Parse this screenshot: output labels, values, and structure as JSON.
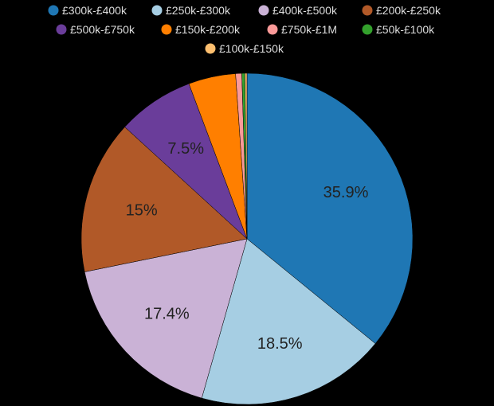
{
  "chart_data": {
    "type": "pie",
    "legend_position": "top",
    "slices": [
      {
        "label": "£300k-£400k",
        "value": 35.9,
        "display": "35.9%",
        "color": "#1f77b4"
      },
      {
        "label": "£250k-£300k",
        "value": 18.5,
        "display": "18.5%",
        "color": "#a6cee3"
      },
      {
        "label": "£400k-£500k",
        "value": 17.4,
        "display": "17.4%",
        "color": "#cab2d6"
      },
      {
        "label": "£200k-£250k",
        "value": 15.0,
        "display": "15%",
        "color": "#b15928"
      },
      {
        "label": "£500k-£750k",
        "value": 7.5,
        "display": "7.5%",
        "color": "#6a3d9a"
      },
      {
        "label": "£150k-£200k",
        "value": 4.6,
        "display": "",
        "color": "#ff7f00"
      },
      {
        "label": "£750k-£1M",
        "value": 0.6,
        "display": "",
        "color": "#fb9a99"
      },
      {
        "label": "£50k-£100k",
        "value": 0.3,
        "display": "",
        "color": "#33a02c"
      },
      {
        "label": "£100k-£150k",
        "value": 0.2,
        "display": "",
        "color": "#fdbf6f"
      }
    ]
  }
}
